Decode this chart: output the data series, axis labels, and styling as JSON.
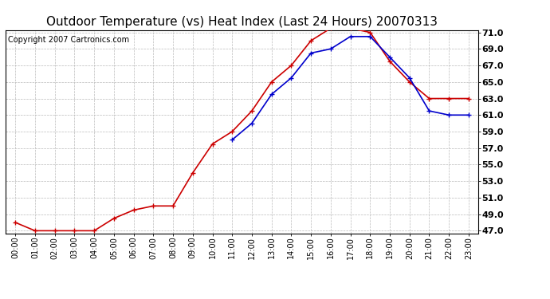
{
  "title": "Outdoor Temperature (vs) Heat Index (Last 24 Hours) 20070313",
  "copyright_text": "Copyright 2007 Cartronics.com",
  "hours": [
    "00:00",
    "01:00",
    "02:00",
    "03:00",
    "04:00",
    "05:00",
    "06:00",
    "07:00",
    "08:00",
    "09:00",
    "10:00",
    "11:00",
    "12:00",
    "13:00",
    "14:00",
    "15:00",
    "16:00",
    "17:00",
    "18:00",
    "19:00",
    "20:00",
    "21:00",
    "22:00",
    "23:00"
  ],
  "outdoor_temp": [
    48.0,
    47.0,
    47.0,
    47.0,
    47.0,
    48.5,
    49.5,
    50.0,
    50.0,
    54.0,
    57.5,
    59.0,
    61.5,
    65.0,
    67.0,
    70.0,
    71.5,
    71.5,
    71.0,
    67.5,
    65.0,
    63.0,
    63.0,
    63.0
  ],
  "heat_index": [
    null,
    null,
    null,
    null,
    null,
    null,
    null,
    null,
    null,
    null,
    null,
    58.0,
    60.0,
    63.5,
    65.5,
    68.5,
    69.0,
    70.5,
    70.5,
    68.0,
    65.5,
    61.5,
    61.0,
    61.0
  ],
  "temp_color": "#cc0000",
  "heat_color": "#0000cc",
  "ylim_min": 47.0,
  "ylim_max": 71.0,
  "ytick_step": 2.0,
  "background_color": "#ffffff",
  "grid_color": "#bbbbbb",
  "title_fontsize": 11,
  "copyright_fontsize": 7,
  "marker": "+",
  "marker_size": 5,
  "line_width": 1.2
}
